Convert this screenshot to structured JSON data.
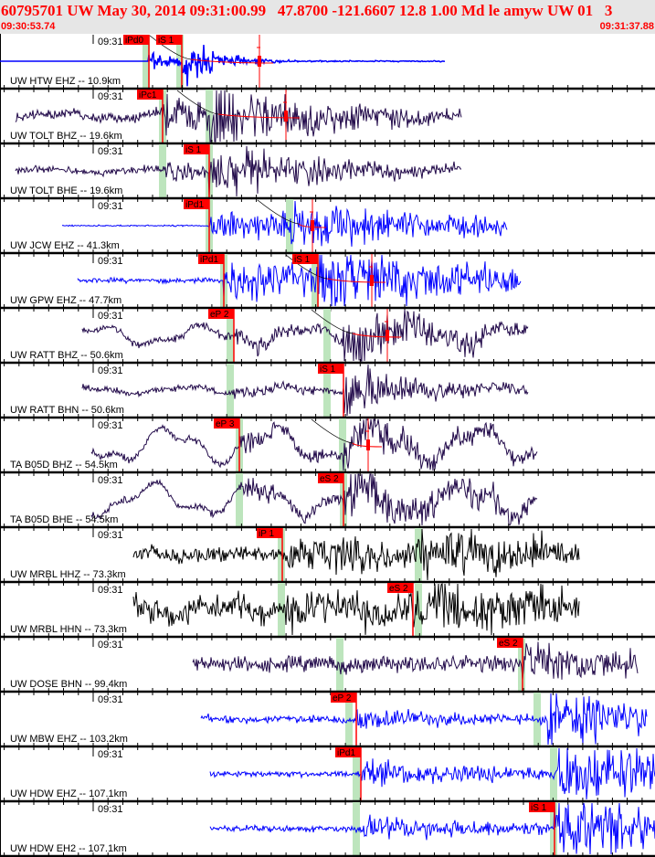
{
  "header": {
    "title": "60795701 UW May 30, 2014 09:31:00.99   47.8700 -121.6607 12.8 1.00 Md le amyw UW 01   3",
    "start_time": "09:30:53.74",
    "end_time": "09:31:37.88"
  },
  "minute_label": "09:31",
  "colors": {
    "pick": "#ff0000",
    "window": "#bde5bd",
    "short_period": "#0000ff",
    "broadband": "#220a4a",
    "strong_motion": "#000000"
  },
  "panels": [
    {
      "label": "UW HTW EHZ -- 10.9km",
      "color": "#0000ff",
      "picks": [
        "iPd0",
        "iS 1"
      ]
    },
    {
      "label": "UW TOLT BHZ -- 19.6km",
      "color": "#220a4a",
      "picks": [
        "iPc1"
      ]
    },
    {
      "label": "UW TOLT BHE -- 19.6km",
      "color": "#220a4a",
      "picks": [
        "iS 1"
      ]
    },
    {
      "label": "UW JCW EHZ -- 41.3km",
      "color": "#0000ff",
      "picks": [
        "iPd1"
      ]
    },
    {
      "label": "UW GPW EHZ -- 47.7km",
      "color": "#0000ff",
      "picks": [
        "iPd1",
        "iS 1"
      ]
    },
    {
      "label": "UW RATT BHZ -- 50.6km",
      "color": "#220a4a",
      "picks": [
        "eP 2"
      ]
    },
    {
      "label": "UW RATT BHN -- 50.6km",
      "color": "#220a4a",
      "picks": [
        "iS 1"
      ]
    },
    {
      "label": "TA B05D BHZ -- 54.5km",
      "color": "#220a4a",
      "picks": [
        "eP 3"
      ]
    },
    {
      "label": "TA B05D BHE -- 54.5km",
      "color": "#220a4a",
      "picks": [
        "eS 2"
      ]
    },
    {
      "label": "UW MRBL HHZ -- 73.3km",
      "color": "#000000",
      "picks": [
        "iP 1"
      ]
    },
    {
      "label": "UW MRBL HHN -- 73.3km",
      "color": "#000000",
      "picks": [
        "eS 2"
      ]
    },
    {
      "label": "UW DOSE BHN -- 99.4km",
      "color": "#220a4a",
      "picks": [
        "eS 2"
      ]
    },
    {
      "label": "UW MBW EHZ -- 103.2km",
      "color": "#0000ff",
      "picks": [
        "eP 2"
      ]
    },
    {
      "label": "UW HDW EHZ -- 107.1km",
      "color": "#0000ff",
      "picks": [
        "iPd1"
      ]
    },
    {
      "label": "UW HDW EH2 -- 107.1km",
      "color": "#0000ff",
      "picks": [
        "iS 1"
      ]
    }
  ]
}
